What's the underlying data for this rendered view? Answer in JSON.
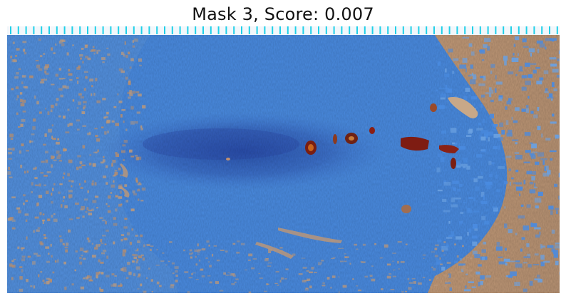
{
  "figure": {
    "title": "Mask 3, Score: 0.007"
  },
  "image": {
    "subject": "weathered wooden surface with rust stains",
    "mask_overlay_color": "#3c8df0",
    "background_color": "#c09a78",
    "ruler_color": "#1fd0e8",
    "stain_color": "#8b1f14"
  }
}
